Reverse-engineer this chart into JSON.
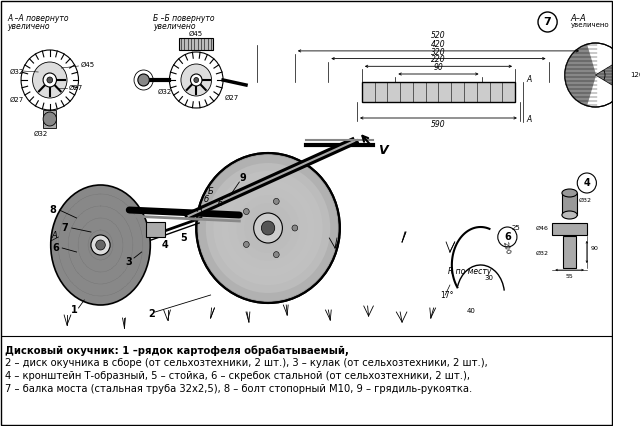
{
  "background_color": "#ffffff",
  "fig_width": 6.4,
  "fig_height": 4.26,
  "dpi": 100,
  "caption_lines": [
    "Дисковый окучник: 1 –рядок картофеля обрабатываемый,",
    "2 – диск окучника в сборе (от сельхозтехники, 2 шт.), 3 – кулак (от сельхозтехники, 2 шт.),",
    "4 – кронштейн Т-образный, 5 – стойка, 6 – скребок стальной (от сельхозтехники, 2 шт.),",
    "7 – балка моста (стальная труба 32х2,5), 8 – болт стопорный М10, 9 – грядиль-рукоятка."
  ],
  "text_color": "#000000"
}
